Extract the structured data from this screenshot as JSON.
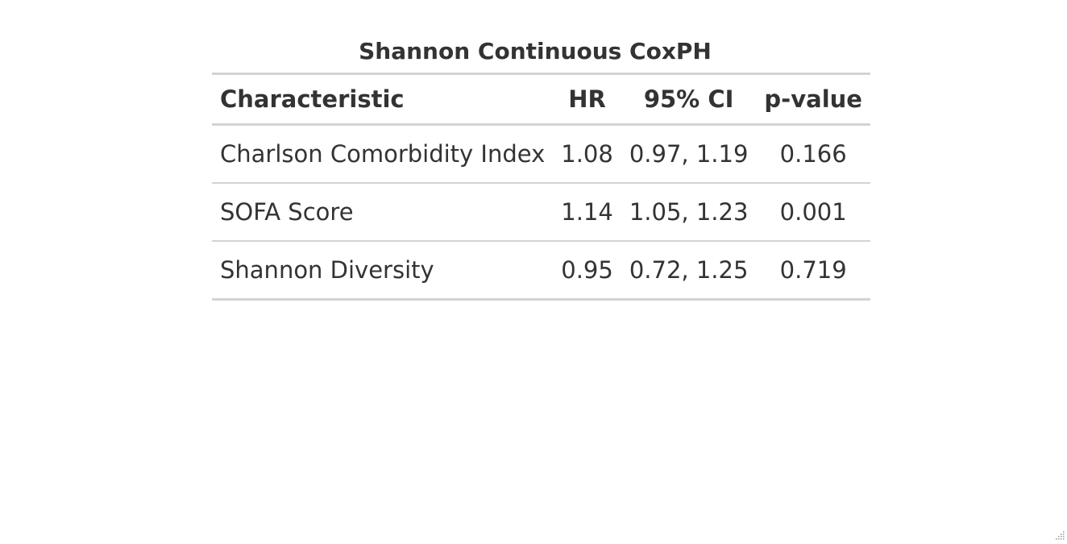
{
  "table": {
    "title": "Shannon Continuous CoxPH",
    "headers": {
      "characteristic": "Characteristic",
      "hr": "HR",
      "ci": "95% CI",
      "pvalue": "p-value"
    },
    "rows": [
      {
        "label": "Charlson Comorbidity Index",
        "hr": "1.08",
        "ci": "0.97, 1.19",
        "p": "0.166"
      },
      {
        "label": "SOFA Score",
        "hr": "1.14",
        "ci": "1.05, 1.23",
        "p": "0.001"
      },
      {
        "label": "Shannon Diversity",
        "hr": "0.95",
        "ci": "0.72, 1.25",
        "p": "0.719"
      }
    ]
  },
  "colors": {
    "text": "#333333",
    "rule": "#d3d3d3"
  },
  "icons": {
    "resize": "resize-grip-icon"
  }
}
